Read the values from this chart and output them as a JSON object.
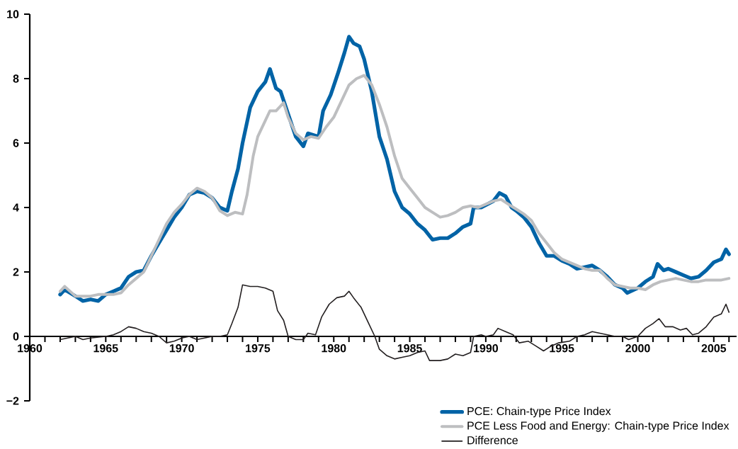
{
  "chart_data": {
    "type": "line",
    "xlim": [
      1960,
      2006.5
    ],
    "ylim": [
      -2,
      10
    ],
    "xticks": [
      1960,
      {
        "value": 1961,
        "label": null
      },
      {
        "value": 1962,
        "label": null
      },
      {
        "value": 1963,
        "label": null
      },
      {
        "value": 1964,
        "label": null
      },
      1965,
      {
        "value": 1966,
        "label": null
      },
      {
        "value": 1967,
        "label": null
      },
      {
        "value": 1968,
        "label": null
      },
      {
        "value": 1969,
        "label": null
      },
      1970,
      {
        "value": 1971,
        "label": null
      },
      {
        "value": 1972,
        "label": null
      },
      {
        "value": 1973,
        "label": null
      },
      {
        "value": 1974,
        "label": null
      },
      1975,
      {
        "value": 1976,
        "label": null
      },
      {
        "value": 1977,
        "label": null
      },
      {
        "value": 1978,
        "label": null
      },
      {
        "value": 1979,
        "label": null
      },
      1980,
      {
        "value": 1981,
        "label": null
      },
      {
        "value": 1982,
        "label": null
      },
      {
        "value": 1983,
        "label": null
      },
      {
        "value": 1984,
        "label": null
      },
      1985,
      {
        "value": 1986,
        "label": null
      },
      {
        "value": 1987,
        "label": null
      },
      {
        "value": 1988,
        "label": null
      },
      {
        "value": 1989,
        "label": null
      },
      1990,
      {
        "value": 1991,
        "label": null
      },
      {
        "value": 1992,
        "label": null
      },
      {
        "value": 1993,
        "label": null
      },
      {
        "value": 1994,
        "label": null
      },
      1995,
      {
        "value": 1996,
        "label": null
      },
      {
        "value": 1997,
        "label": null
      },
      {
        "value": 1998,
        "label": null
      },
      {
        "value": 1999,
        "label": null
      },
      2000,
      {
        "value": 2001,
        "label": null
      },
      {
        "value": 2002,
        "label": null
      },
      {
        "value": 2003,
        "label": null
      },
      {
        "value": 2004,
        "label": null
      },
      2005,
      {
        "value": 2006,
        "label": null
      }
    ],
    "yticks": [
      {
        "value": -2,
        "label": "−2"
      },
      0,
      2,
      4,
      6,
      8,
      10
    ],
    "grid": false,
    "legend": "bottom right",
    "marker": "none",
    "line_style": "solid",
    "series": [
      {
        "name": "PCE: Chain-type Price Index",
        "color": "#0063a6",
        "x": [
          1962,
          1962.3,
          1963,
          1963.5,
          1964,
          1964.5,
          1965,
          1965.5,
          1966,
          1966.5,
          1967,
          1967.5,
          1968,
          1968.5,
          1969,
          1969.5,
          1970,
          1970.5,
          1971,
          1971.5,
          1972,
          1972.5,
          1973,
          1973.3,
          1973.7,
          1974,
          1974.5,
          1975,
          1975.5,
          1975.8,
          1976.2,
          1976.5,
          1977,
          1977.5,
          1978,
          1978.3,
          1979,
          1979.3,
          1979.8,
          1980.3,
          1980.7,
          1981,
          1981.3,
          1981.7,
          1982,
          1982.5,
          1983,
          1983.5,
          1984,
          1984.5,
          1985,
          1985.5,
          1986,
          1986.5,
          1987,
          1987.5,
          1988,
          1988.5,
          1989,
          1989.2,
          1989.7,
          1990.5,
          1990.9,
          1991.3,
          1991.7,
          1992,
          1992.5,
          1993,
          1993.5,
          1994,
          1994.5,
          1995,
          1995.5,
          1996,
          1996.5,
          1997,
          1997.5,
          1998,
          1998.5,
          1999,
          1999.3,
          2000,
          2000.5,
          2001,
          2001.3,
          2001.7,
          2002,
          2002.5,
          2003,
          2003.5,
          2004,
          2004.5,
          2005,
          2005.5,
          2005.8,
          2006
        ],
        "values": [
          1.3,
          1.45,
          1.25,
          1.1,
          1.15,
          1.1,
          1.3,
          1.4,
          1.5,
          1.85,
          2.0,
          2.05,
          2.5,
          2.9,
          3.3,
          3.7,
          4.0,
          4.4,
          4.5,
          4.45,
          4.3,
          4.0,
          3.9,
          4.5,
          5.2,
          6.0,
          7.1,
          7.6,
          7.9,
          8.3,
          7.7,
          7.6,
          6.9,
          6.2,
          5.9,
          6.3,
          6.2,
          7.0,
          7.5,
          8.2,
          8.8,
          9.3,
          9.1,
          9.0,
          8.6,
          7.6,
          6.2,
          5.5,
          4.5,
          4.0,
          3.8,
          3.5,
          3.3,
          3.0,
          3.05,
          3.05,
          3.2,
          3.4,
          3.5,
          4.0,
          4.0,
          4.2,
          4.45,
          4.35,
          4.0,
          3.9,
          3.7,
          3.4,
          2.9,
          2.5,
          2.5,
          2.35,
          2.25,
          2.1,
          2.15,
          2.2,
          2.05,
          1.85,
          1.6,
          1.5,
          1.35,
          1.5,
          1.7,
          1.85,
          2.25,
          2.05,
          2.1,
          2.0,
          1.9,
          1.8,
          1.85,
          2.05,
          2.3,
          2.4,
          2.7,
          2.55
        ]
      },
      {
        "name": "PCE Less Food and Energy: Chain-type Price Index",
        "color": "#bdbec0",
        "x": [
          1962,
          1962.3,
          1963,
          1963.5,
          1964,
          1964.5,
          1965,
          1965.5,
          1966,
          1966.5,
          1967,
          1967.5,
          1968,
          1968.5,
          1969,
          1969.5,
          1970,
          1970.5,
          1971,
          1971.5,
          1972,
          1972.5,
          1973,
          1973.5,
          1974,
          1974.3,
          1974.7,
          1975,
          1975.5,
          1975.8,
          1976.2,
          1976.7,
          1977,
          1977.5,
          1978,
          1978.5,
          1979,
          1979.5,
          1980,
          1980.5,
          1981,
          1981.5,
          1982,
          1982.5,
          1983,
          1983.5,
          1984,
          1984.5,
          1985,
          1985.5,
          1986,
          1986.5,
          1987,
          1987.5,
          1988,
          1988.5,
          1989,
          1989.5,
          1990,
          1990.5,
          1991,
          1991.5,
          1992,
          1992.5,
          1993,
          1993.5,
          1994,
          1994.5,
          1995,
          1995.5,
          1996,
          1996.5,
          1997,
          1997.5,
          1998,
          1998.5,
          1999,
          1999.5,
          2000,
          2000.5,
          2001,
          2001.5,
          2002,
          2002.5,
          2003,
          2003.5,
          2004,
          2004.5,
          2005,
          2005.5,
          2006
        ],
        "values": [
          1.4,
          1.55,
          1.25,
          1.25,
          1.25,
          1.3,
          1.3,
          1.3,
          1.35,
          1.6,
          1.8,
          2.0,
          2.5,
          3.0,
          3.5,
          3.85,
          4.1,
          4.4,
          4.6,
          4.5,
          4.3,
          3.9,
          3.75,
          3.85,
          3.8,
          4.4,
          5.6,
          6.2,
          6.7,
          7.0,
          7.0,
          7.25,
          6.8,
          6.3,
          6.1,
          6.2,
          6.15,
          6.5,
          6.8,
          7.3,
          7.8,
          8.0,
          8.1,
          7.8,
          7.2,
          6.5,
          5.6,
          4.9,
          4.6,
          4.3,
          4.0,
          3.85,
          3.7,
          3.75,
          3.85,
          4.0,
          4.05,
          4.0,
          4.1,
          4.2,
          4.25,
          4.1,
          3.95,
          3.8,
          3.6,
          3.2,
          2.9,
          2.6,
          2.4,
          2.3,
          2.2,
          2.1,
          2.05,
          2.05,
          1.8,
          1.6,
          1.55,
          1.5,
          1.5,
          1.45,
          1.6,
          1.7,
          1.75,
          1.8,
          1.75,
          1.7,
          1.7,
          1.75,
          1.75,
          1.75,
          1.8
        ]
      },
      {
        "name": "Difference",
        "color": "#231f20",
        "x": [
          1962,
          1963,
          1963.5,
          1964,
          1965,
          1965.5,
          1966,
          1966.5,
          1967,
          1967.5,
          1968,
          1968.5,
          1969,
          1969.5,
          1970,
          1970.5,
          1971,
          1971.5,
          1972,
          1972.5,
          1973,
          1973.3,
          1973.7,
          1974,
          1974.5,
          1975,
          1975.5,
          1976,
          1976.3,
          1976.7,
          1977,
          1977.5,
          1978,
          1978.3,
          1978.8,
          1979.2,
          1979.7,
          1980.2,
          1980.7,
          1981,
          1981.3,
          1981.8,
          1982.3,
          1982.7,
          1983,
          1983.5,
          1984,
          1984.5,
          1985,
          1985.5,
          1986,
          1986.3,
          1987,
          1987.5,
          1988,
          1988.5,
          1989,
          1989.2,
          1989.7,
          1990,
          1990.5,
          1990.8,
          1991.3,
          1991.8,
          1992.2,
          1992.8,
          1993.3,
          1993.8,
          1994.3,
          1994.8,
          1995.5,
          1996,
          1996.5,
          1997,
          1997.5,
          1998,
          1998.5,
          1999,
          1999.4,
          2000,
          2000.5,
          2001,
          2001.4,
          2001.8,
          2002.3,
          2002.8,
          2003.2,
          2003.6,
          2004,
          2004.5,
          2005,
          2005.5,
          2005.8,
          2006
        ],
        "values": [
          -0.1,
          0.0,
          -0.1,
          -0.05,
          0.0,
          0.05,
          0.15,
          0.3,
          0.25,
          0.15,
          0.1,
          0.0,
          -0.2,
          -0.15,
          -0.05,
          0.0,
          -0.1,
          -0.05,
          0.0,
          0.0,
          0.05,
          0.4,
          0.9,
          1.6,
          1.55,
          1.55,
          1.5,
          1.4,
          0.8,
          0.5,
          0.0,
          -0.1,
          -0.1,
          0.1,
          0.05,
          0.6,
          1.0,
          1.2,
          1.25,
          1.4,
          1.2,
          0.9,
          0.4,
          0.0,
          -0.4,
          -0.6,
          -0.7,
          -0.65,
          -0.6,
          -0.5,
          -0.45,
          -0.75,
          -0.75,
          -0.7,
          -0.55,
          -0.6,
          -0.5,
          0.0,
          0.05,
          0.0,
          0.05,
          0.25,
          0.15,
          0.05,
          -0.2,
          -0.15,
          -0.3,
          -0.45,
          -0.3,
          -0.2,
          -0.15,
          0.0,
          0.05,
          0.15,
          0.1,
          0.05,
          0.0,
          0.0,
          -0.1,
          0.0,
          0.25,
          0.4,
          0.55,
          0.3,
          0.3,
          0.2,
          0.25,
          0.05,
          0.1,
          0.3,
          0.6,
          0.7,
          1.0,
          0.75
        ]
      }
    ]
  }
}
